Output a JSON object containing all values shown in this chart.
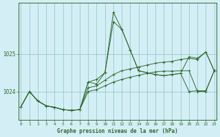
{
  "title": "Graphe pression niveau de la mer (hPa)",
  "bg_color": "#d4eef5",
  "grid_color": "#85c4c4",
  "line_color": "#2d6a2d",
  "xlim": [
    -0.3,
    23.3
  ],
  "ylim": [
    1023.25,
    1026.35
  ],
  "yticks": [
    1024,
    1025
  ],
  "xticks": [
    0,
    1,
    2,
    3,
    4,
    5,
    6,
    7,
    8,
    9,
    10,
    11,
    12,
    13,
    14,
    15,
    16,
    17,
    18,
    19,
    20,
    21,
    22,
    23
  ],
  "line_main": [
    1023.6,
    1024.0,
    1023.75,
    1023.62,
    1023.58,
    1023.52,
    1023.5,
    1023.52,
    1024.25,
    1024.2,
    1024.5,
    1026.1,
    1025.65,
    1025.1,
    1024.55,
    1024.5,
    1024.45,
    1024.42,
    1024.45,
    1024.48,
    1024.0,
    1024.02,
    1024.02,
    1024.55
  ],
  "line_a": [
    1023.6,
    1024.0,
    1023.75,
    1023.62,
    1023.58,
    1023.52,
    1023.5,
    1023.52,
    1024.25,
    1024.32,
    1024.5,
    1025.85,
    1025.65,
    1025.1,
    1024.55,
    1024.5,
    1024.45,
    1024.42,
    1024.45,
    1024.48,
    1024.92,
    1024.88,
    1025.05,
    1024.55
  ],
  "line_b": [
    1023.6,
    1024.0,
    1023.75,
    1023.62,
    1023.58,
    1023.52,
    1023.5,
    1023.52,
    1024.1,
    1024.15,
    1024.3,
    1024.45,
    1024.55,
    1024.6,
    1024.65,
    1024.7,
    1024.75,
    1024.78,
    1024.8,
    1024.85,
    1024.88,
    1024.85,
    1025.05,
    1024.55
  ],
  "line_c": [
    1023.6,
    1024.0,
    1023.75,
    1023.62,
    1023.58,
    1023.52,
    1023.5,
    1023.52,
    1024.0,
    1024.05,
    1024.15,
    1024.25,
    1024.32,
    1024.38,
    1024.43,
    1024.48,
    1024.52,
    1024.54,
    1024.54,
    1024.55,
    1024.55,
    1024.0,
    1024.0,
    1024.55
  ]
}
